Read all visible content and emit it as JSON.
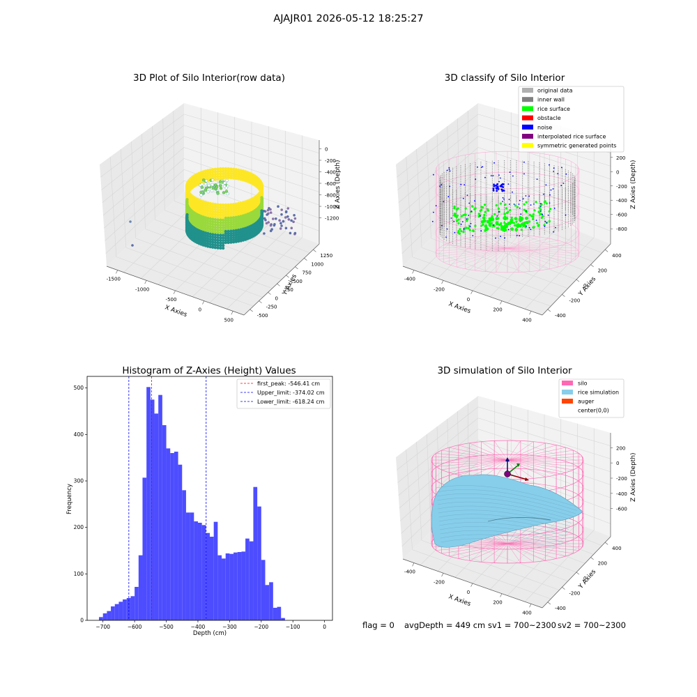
{
  "suptitle": "AJAJR01 2026-05-12 18:25:27",
  "footer": {
    "flag": "flag = 0",
    "avg_depth": "avgDepth = 449 cm",
    "sv1": "sv1 = 700~2300",
    "sv2": "sv2 = 700~2300"
  },
  "chart_data": [
    {
      "id": "raw",
      "type": "scatter",
      "projection": "3d",
      "title": "3D Plot of Silo Interior(row data)",
      "xlabel": "X Axies",
      "ylabel": "Y Axies",
      "zlabel": "Z Axies (Depth)",
      "xticks": [
        "-1500",
        "-1000",
        "-500",
        "0",
        "500"
      ],
      "yticks": [
        "-500",
        "-250",
        "0",
        "250",
        "500",
        "750",
        "1000",
        "1250"
      ],
      "zticks": [
        "0",
        "-200",
        "-400",
        "-600",
        "-800",
        "-1000",
        "-1200"
      ],
      "colormap": "viridis",
      "colors": {
        "high": "#fde725",
        "mid": "#21918c",
        "low": "#440154"
      }
    },
    {
      "id": "classify",
      "type": "scatter",
      "projection": "3d",
      "title": "3D classify of Silo Interior",
      "xlabel": "X Axies",
      "ylabel": "Y Axies",
      "zlabel": "Z Axies (Depth)",
      "xticks": [
        "-400",
        "-200",
        "0",
        "200",
        "400"
      ],
      "yticks": [
        "-400",
        "-200",
        "0",
        "200",
        "400"
      ],
      "zticks": [
        "200",
        "0",
        "-200",
        "-400",
        "-600",
        "-800"
      ],
      "legend_position": "top-right",
      "legend": [
        {
          "label": "original data",
          "color": "#b0b0b0"
        },
        {
          "label": "inner wall",
          "color": "#808080"
        },
        {
          "label": "rice surface",
          "color": "#00ff00"
        },
        {
          "label": "obstacle",
          "color": "#ff0000"
        },
        {
          "label": "noise",
          "color": "#0000ff"
        },
        {
          "label": "interpolated rice surface",
          "color": "#800080"
        },
        {
          "label": "symmetric generated points",
          "color": "#ffff00"
        }
      ]
    },
    {
      "id": "hist",
      "type": "bar",
      "title": "Histogram of Z-Axies (Height) Values",
      "xlabel": "Depth (cm)",
      "ylabel": "Frequency",
      "xlim": [
        -750,
        25
      ],
      "ylim": [
        0,
        525
      ],
      "bin_width": 12.5,
      "bin_start": -712.5,
      "bar_color": "#4d4dff",
      "values": [
        7,
        15,
        20,
        30,
        35,
        40,
        45,
        48,
        52,
        72,
        140,
        307,
        502,
        475,
        445,
        485,
        420,
        370,
        360,
        363,
        335,
        280,
        232,
        232,
        213,
        210,
        205,
        188,
        180,
        212,
        140,
        133,
        144,
        143,
        146,
        147,
        148,
        176,
        170,
        287,
        245,
        130,
        76,
        82,
        27,
        29,
        5
      ],
      "xticks": [
        -700,
        -600,
        -500,
        -400,
        -300,
        -200,
        -100,
        0
      ],
      "yticks": [
        0,
        100,
        200,
        300,
        400,
        500
      ],
      "vlines": [
        {
          "x": -546.41,
          "color": "#ff0000",
          "label": "first_peak: -546.41 cm"
        },
        {
          "x": -374.02,
          "color": "#0000ff",
          "label": "Upper_limit: -374.02 cm"
        },
        {
          "x": -618.24,
          "color": "#0000ff",
          "label": "Lower_limit: -618.24 cm"
        }
      ],
      "legend_position": "top-right"
    },
    {
      "id": "sim",
      "type": "surface",
      "projection": "3d",
      "title": "3D simulation of Silo Interior",
      "xlabel": "X Axies",
      "ylabel": "Y Axies",
      "zlabel": "Z Axies (Depth)",
      "xticks": [
        "-400",
        "-200",
        "0",
        "200",
        "400"
      ],
      "yticks": [
        "-400",
        "-200",
        "0",
        "200",
        "400"
      ],
      "zticks": [
        "200",
        "0",
        "-200",
        "-400",
        "-600"
      ],
      "legend_position": "top-right",
      "legend": [
        {
          "label": "silo",
          "color": "#ff69b4"
        },
        {
          "label": "rice simulation",
          "color": "#87ceeb"
        },
        {
          "label": "auger",
          "color": "#ff4500"
        },
        {
          "label": "center(0,0)",
          "color": ""
        }
      ]
    }
  ]
}
